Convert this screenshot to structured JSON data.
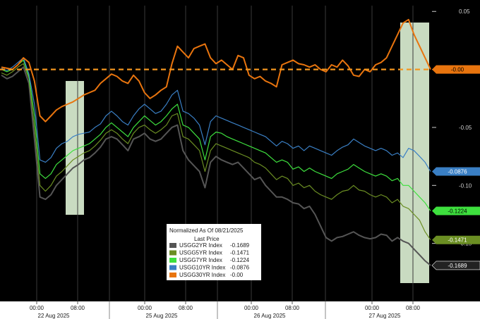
{
  "chart_data": {
    "type": "line",
    "title": "",
    "legend": {
      "title": "Normalized As Of 08/21/2025",
      "subtitle": "Last Price",
      "placement": "bottom-center"
    },
    "y_ticks": [
      "0.05",
      "0.00",
      "-0.05",
      "-0.10",
      "-0.15"
    ],
    "ylim": [
      -0.2,
      0.055
    ],
    "x_time_labels": [
      "00:00",
      "08:00",
      "00:00",
      "08:00",
      "00:00",
      "08:00",
      "00:00",
      "08:00"
    ],
    "x_date_labels": [
      "22 Aug 2025",
      "25 Aug 2025",
      "26 Aug 2025",
      "27 Aug 2025"
    ],
    "highlight_bands": [
      "22 Aug 2025 ~08:00",
      "27 Aug 2025 ~06:00-10:00"
    ],
    "grid": true,
    "series": [
      {
        "name": "USGG2YR Index",
        "last": "-0.1689",
        "end_label": "-0.1689",
        "color": "#555555",
        "values": [
          -0.005,
          -0.008,
          -0.006,
          -0.002,
          0.002,
          -0.012,
          -0.06,
          -0.11,
          -0.112,
          -0.108,
          -0.1,
          -0.095,
          -0.09,
          -0.085,
          -0.082,
          -0.078,
          -0.076,
          -0.072,
          -0.067,
          -0.06,
          -0.058,
          -0.06,
          -0.065,
          -0.07,
          -0.06,
          -0.058,
          -0.055,
          -0.06,
          -0.062,
          -0.06,
          -0.055,
          -0.05,
          -0.048,
          -0.07,
          -0.078,
          -0.083,
          -0.088,
          -0.102,
          -0.08,
          -0.075,
          -0.078,
          -0.08,
          -0.082,
          -0.08,
          -0.085,
          -0.09,
          -0.095,
          -0.093,
          -0.1,
          -0.105,
          -0.11,
          -0.11,
          -0.112,
          -0.115,
          -0.116,
          -0.12,
          -0.118,
          -0.125,
          -0.135,
          -0.145,
          -0.148,
          -0.145,
          -0.144,
          -0.142,
          -0.14,
          -0.143,
          -0.145,
          -0.146,
          -0.145,
          -0.142,
          -0.143,
          -0.148,
          -0.145,
          -0.148,
          -0.15,
          -0.155,
          -0.16,
          -0.165,
          -0.169
        ]
      },
      {
        "name": "USGG5YR Index",
        "last": "-0.1471",
        "end_label": "-0.1471",
        "color": "#6b8e23",
        "values": [
          -0.003,
          -0.005,
          -0.002,
          0.002,
          0.005,
          -0.008,
          -0.05,
          -0.1,
          -0.105,
          -0.1,
          -0.092,
          -0.088,
          -0.083,
          -0.078,
          -0.075,
          -0.072,
          -0.07,
          -0.066,
          -0.061,
          -0.055,
          -0.052,
          -0.055,
          -0.06,
          -0.064,
          -0.055,
          -0.05,
          -0.048,
          -0.052,
          -0.055,
          -0.052,
          -0.048,
          -0.04,
          -0.038,
          -0.058,
          -0.06,
          -0.065,
          -0.07,
          -0.088,
          -0.07,
          -0.064,
          -0.066,
          -0.068,
          -0.07,
          -0.072,
          -0.074,
          -0.076,
          -0.08,
          -0.082,
          -0.085,
          -0.09,
          -0.095,
          -0.092,
          -0.094,
          -0.1,
          -0.098,
          -0.102,
          -0.1,
          -0.105,
          -0.108,
          -0.11,
          -0.112,
          -0.108,
          -0.105,
          -0.104,
          -0.1,
          -0.104,
          -0.105,
          -0.108,
          -0.11,
          -0.108,
          -0.11,
          -0.115,
          -0.112,
          -0.118,
          -0.12,
          -0.125,
          -0.13,
          -0.14,
          -0.147
        ]
      },
      {
        "name": "USGG7YR Index",
        "last": "-0.1224",
        "end_label": "-0.1224",
        "color": "#3ee03e",
        "values": [
          0.0,
          -0.002,
          0.0,
          0.004,
          0.008,
          -0.006,
          -0.04,
          -0.09,
          -0.094,
          -0.09,
          -0.082,
          -0.078,
          -0.074,
          -0.07,
          -0.068,
          -0.066,
          -0.064,
          -0.06,
          -0.056,
          -0.05,
          -0.046,
          -0.05,
          -0.054,
          -0.058,
          -0.05,
          -0.045,
          -0.04,
          -0.044,
          -0.048,
          -0.045,
          -0.04,
          -0.034,
          -0.03,
          -0.048,
          -0.05,
          -0.055,
          -0.06,
          -0.078,
          -0.058,
          -0.054,
          -0.055,
          -0.058,
          -0.06,
          -0.062,
          -0.064,
          -0.066,
          -0.068,
          -0.07,
          -0.072,
          -0.076,
          -0.08,
          -0.078,
          -0.08,
          -0.086,
          -0.084,
          -0.088,
          -0.085,
          -0.088,
          -0.09,
          -0.092,
          -0.094,
          -0.09,
          -0.088,
          -0.086,
          -0.082,
          -0.085,
          -0.088,
          -0.09,
          -0.092,
          -0.09,
          -0.092,
          -0.096,
          -0.094,
          -0.1,
          -0.1,
          -0.105,
          -0.11,
          -0.115,
          -0.122
        ]
      },
      {
        "name": "USGG10YR Index",
        "last": "-0.0876",
        "end_label": "-0.0876",
        "color": "#3a7fc4",
        "values": [
          0.001,
          -0.001,
          0.002,
          0.006,
          0.01,
          -0.004,
          -0.03,
          -0.078,
          -0.08,
          -0.076,
          -0.068,
          -0.064,
          -0.062,
          -0.058,
          -0.056,
          -0.055,
          -0.054,
          -0.05,
          -0.047,
          -0.04,
          -0.036,
          -0.04,
          -0.045,
          -0.048,
          -0.04,
          -0.034,
          -0.03,
          -0.034,
          -0.038,
          -0.036,
          -0.03,
          -0.022,
          -0.018,
          -0.036,
          -0.038,
          -0.042,
          -0.048,
          -0.065,
          -0.045,
          -0.04,
          -0.042,
          -0.044,
          -0.046,
          -0.048,
          -0.05,
          -0.052,
          -0.054,
          -0.056,
          -0.058,
          -0.062,
          -0.066,
          -0.062,
          -0.064,
          -0.068,
          -0.066,
          -0.07,
          -0.066,
          -0.068,
          -0.07,
          -0.072,
          -0.074,
          -0.07,
          -0.067,
          -0.065,
          -0.06,
          -0.063,
          -0.066,
          -0.068,
          -0.07,
          -0.068,
          -0.07,
          -0.074,
          -0.072,
          -0.076,
          -0.068,
          -0.07,
          -0.075,
          -0.08,
          -0.088
        ]
      },
      {
        "name": "USGG30YR Index",
        "last": "-0.00",
        "end_label": "-0.00",
        "color": "#e8740e",
        "values": [
          0.002,
          0.001,
          0.0,
          0.004,
          0.01,
          0.006,
          -0.01,
          -0.04,
          -0.045,
          -0.04,
          -0.035,
          -0.032,
          -0.03,
          -0.028,
          -0.025,
          -0.022,
          -0.02,
          -0.018,
          -0.012,
          -0.008,
          -0.004,
          -0.006,
          -0.01,
          -0.012,
          -0.005,
          -0.01,
          -0.02,
          -0.025,
          -0.022,
          -0.018,
          -0.015,
          0.005,
          0.02,
          0.015,
          0.01,
          0.018,
          0.02,
          0.022,
          0.01,
          0.005,
          0.008,
          0.004,
          0.0,
          0.012,
          0.01,
          -0.005,
          -0.008,
          -0.006,
          -0.01,
          -0.012,
          -0.015,
          0.004,
          0.006,
          0.008,
          0.005,
          0.004,
          0.002,
          0.004,
          0.0,
          -0.002,
          0.004,
          0.002,
          0.008,
          0.003,
          -0.005,
          -0.006,
          0.0,
          -0.002,
          0.004,
          0.006,
          0.01,
          0.02,
          0.03,
          0.04,
          0.043,
          0.03,
          0.02,
          0.01,
          0.0
        ]
      }
    ]
  }
}
